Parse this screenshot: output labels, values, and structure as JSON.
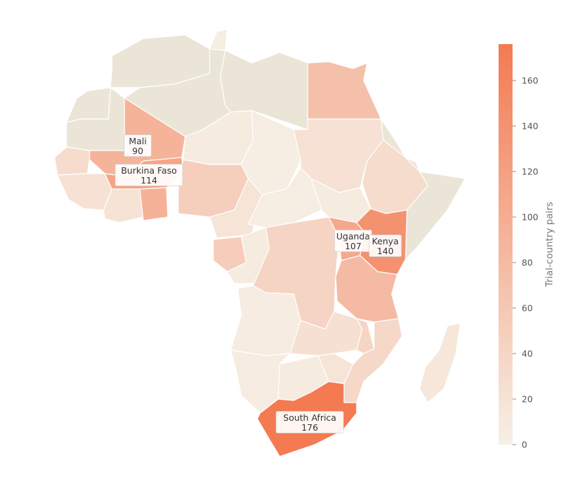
{
  "colorbar": {
    "title": "Trial-country pairs",
    "ticks": [
      "0",
      "20",
      "40",
      "60",
      "80",
      "100",
      "120",
      "140",
      "160"
    ],
    "min": 0,
    "max": 176,
    "color_low": "#f6f0e6",
    "color_high": "#f47a52",
    "no_data_color": "#ebe5d8"
  },
  "labels": [
    {
      "id": "mali",
      "name": "Mali",
      "value": "90"
    },
    {
      "id": "burkina",
      "name": "Burkina Faso",
      "value": "114"
    },
    {
      "id": "uganda",
      "name": "Uganda",
      "value": "107"
    },
    {
      "id": "kenya",
      "name": "Kenya",
      "value": "140"
    },
    {
      "id": "south-africa",
      "name": "South Africa",
      "value": "176"
    }
  ],
  "countries": [
    {
      "id": "morocco",
      "value": null
    },
    {
      "id": "western-sahara",
      "value": null
    },
    {
      "id": "algeria",
      "value": null
    },
    {
      "id": "tunisia",
      "value": 4
    },
    {
      "id": "libya",
      "value": null
    },
    {
      "id": "egypt",
      "value": 72
    },
    {
      "id": "mauritania",
      "value": null
    },
    {
      "id": "mali",
      "value": 90
    },
    {
      "id": "niger",
      "value": 8
    },
    {
      "id": "chad",
      "value": 4
    },
    {
      "id": "sudan",
      "value": 22
    },
    {
      "id": "eritrea",
      "value": null
    },
    {
      "id": "ethiopia",
      "value": 30
    },
    {
      "id": "djibouti",
      "value": null
    },
    {
      "id": "somalia",
      "value": null
    },
    {
      "id": "senegal",
      "value": 30
    },
    {
      "id": "guinea",
      "value": 22
    },
    {
      "id": "burkina",
      "value": 114
    },
    {
      "id": "ghana",
      "value": 94
    },
    {
      "id": "cote-divoire",
      "value": 20
    },
    {
      "id": "nigeria",
      "value": 50
    },
    {
      "id": "cameroon",
      "value": 18
    },
    {
      "id": "car",
      "value": 4
    },
    {
      "id": "south-sudan",
      "value": 8
    },
    {
      "id": "gabon",
      "value": 52
    },
    {
      "id": "congo",
      "value": 8
    },
    {
      "id": "drc",
      "value": 42
    },
    {
      "id": "uganda",
      "value": 107
    },
    {
      "id": "kenya",
      "value": 140
    },
    {
      "id": "tanzania",
      "value": 80
    },
    {
      "id": "angola",
      "value": 6
    },
    {
      "id": "zambia",
      "value": 24
    },
    {
      "id": "malawi",
      "value": 40
    },
    {
      "id": "mozambique",
      "value": 36
    },
    {
      "id": "zimbabwe",
      "value": 18
    },
    {
      "id": "namibia",
      "value": 6
    },
    {
      "id": "botswana",
      "value": 8
    },
    {
      "id": "south-africa",
      "value": 176
    },
    {
      "id": "madagascar",
      "value": 14
    }
  ]
}
